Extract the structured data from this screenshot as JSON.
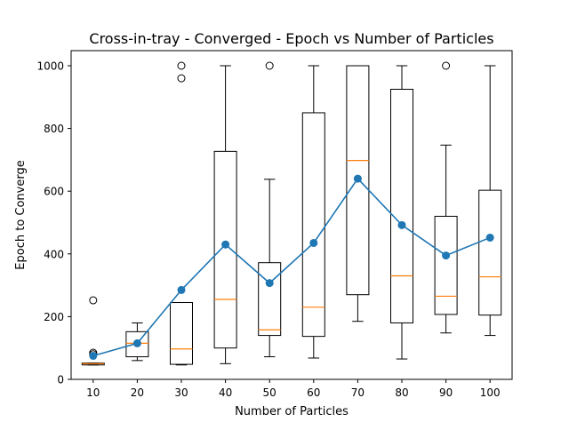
{
  "chart_data": {
    "type": "box",
    "title": "Cross-in-tray - Converged - Epoch vs Number of Particles",
    "xlabel": "Number of Particles",
    "ylabel": "Epoch to Converge",
    "categories": [
      "10",
      "20",
      "30",
      "40",
      "50",
      "60",
      "70",
      "80",
      "90",
      "100"
    ],
    "yticks": [
      "0",
      "200",
      "400",
      "600",
      "800",
      "1000"
    ],
    "ylim": [
      0,
      1000
    ],
    "ytick_values": [
      0,
      200,
      400,
      600,
      800,
      1000
    ],
    "boxes": [
      {
        "category": "10",
        "whisker_low": 46,
        "q1": 46,
        "median": 50,
        "q3": 52,
        "whisker_high": 52,
        "outliers": [
          252,
          85,
          80
        ]
      },
      {
        "category": "20",
        "whisker_low": 60,
        "q1": 72,
        "median": 115,
        "q3": 152,
        "whisker_high": 180,
        "outliers": []
      },
      {
        "category": "30",
        "whisker_low": 46,
        "q1": 48,
        "median": 97,
        "q3": 245,
        "whisker_high": 245,
        "outliers": [
          1000,
          960
        ]
      },
      {
        "category": "40",
        "whisker_low": 50,
        "q1": 100,
        "median": 255,
        "q3": 727,
        "whisker_high": 1000,
        "outliers": []
      },
      {
        "category": "50",
        "whisker_low": 72,
        "q1": 140,
        "median": 158,
        "q3": 372,
        "whisker_high": 638,
        "outliers": [
          1000
        ]
      },
      {
        "category": "60",
        "whisker_low": 68,
        "q1": 137,
        "median": 230,
        "q3": 850,
        "whisker_high": 1000,
        "outliers": []
      },
      {
        "category": "70",
        "whisker_low": 185,
        "q1": 270,
        "median": 698,
        "q3": 1000,
        "whisker_high": 1000,
        "outliers": []
      },
      {
        "category": "80",
        "whisker_low": 65,
        "q1": 180,
        "median": 330,
        "q3": 925,
        "whisker_high": 1000,
        "outliers": []
      },
      {
        "category": "90",
        "whisker_low": 148,
        "q1": 207,
        "median": 265,
        "q3": 520,
        "whisker_high": 747,
        "outliers": [
          1000
        ]
      },
      {
        "category": "100",
        "whisker_low": 140,
        "q1": 205,
        "median": 327,
        "q3": 603,
        "whisker_high": 1000,
        "outliers": []
      }
    ],
    "mean_series": {
      "values": [
        75,
        115,
        285,
        430,
        307,
        435,
        640,
        492,
        395,
        452
      ],
      "color": "#1f77b4"
    },
    "median_color": "#ff7f0e",
    "box_color": "#000000",
    "grid": false
  }
}
